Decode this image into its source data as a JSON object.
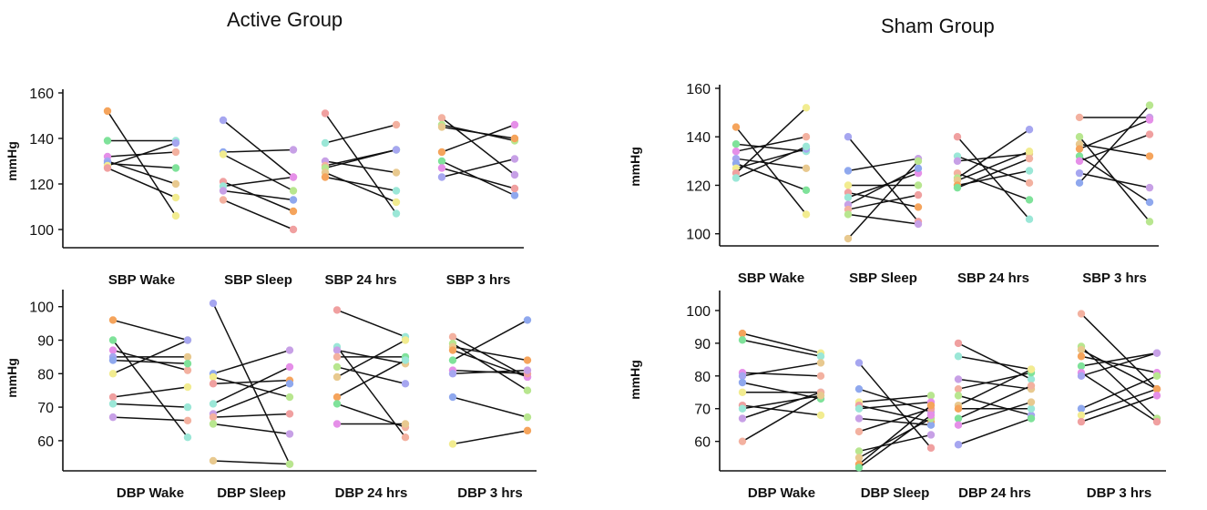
{
  "titles": {
    "active": "Active Group",
    "sham": "Sham Group"
  },
  "chart_data": [
    {
      "type": "scatter",
      "subtype": "paired-dot-plot",
      "group": "Active Group",
      "measure": "SBP",
      "ylabel": "mmHg",
      "ylim": [
        92,
        160
      ],
      "yticks": [
        100,
        120,
        140,
        160
      ],
      "categories": [
        "SBP Wake",
        "SBP Sleep",
        "SBP 24 hrs",
        "SBP 3 hrs"
      ],
      "pairs": [
        [
          [
            152,
            106
          ],
          [
            139,
            139
          ],
          [
            132,
            134
          ],
          [
            130,
            120
          ],
          [
            129,
            127
          ],
          [
            128,
            138
          ],
          [
            127,
            114
          ]
        ],
        [
          [
            148,
            123
          ],
          [
            134,
            135
          ],
          [
            133,
            117
          ],
          [
            121,
            108
          ],
          [
            119,
            123
          ],
          [
            117,
            113
          ],
          [
            113,
            100
          ]
        ],
        [
          [
            151,
            107
          ],
          [
            138,
            146
          ],
          [
            130,
            125
          ],
          [
            128,
            135
          ],
          [
            127,
            135
          ],
          [
            125,
            112
          ],
          [
            123,
            117
          ]
        ],
        [
          [
            149,
            124
          ],
          [
            146,
            139
          ],
          [
            145,
            140
          ],
          [
            134,
            146
          ],
          [
            130,
            115
          ],
          [
            127,
            118
          ],
          [
            123,
            131
          ]
        ]
      ]
    },
    {
      "type": "scatter",
      "subtype": "paired-dot-plot",
      "group": "Sham Group",
      "measure": "SBP",
      "ylabel": "mmHg",
      "ylim": [
        95,
        160
      ],
      "yticks": [
        100,
        120,
        140,
        160
      ],
      "categories": [
        "SBP Wake",
        "SBP Sleep",
        "SBP 24 hrs",
        "SBP 3 hrs"
      ],
      "pairs": [
        [
          [
            144,
            108
          ],
          [
            137,
            134
          ],
          [
            134,
            140
          ],
          [
            131,
            127
          ],
          [
            129,
            118
          ],
          [
            127,
            135
          ],
          [
            125,
            152
          ],
          [
            123,
            136
          ]
        ],
        [
          [
            140,
            105
          ],
          [
            126,
            131
          ],
          [
            120,
            120
          ],
          [
            117,
            111
          ],
          [
            115,
            125
          ],
          [
            112,
            127
          ],
          [
            110,
            116
          ],
          [
            108,
            104
          ],
          [
            98,
            130
          ]
        ],
        [
          [
            140,
            106
          ],
          [
            132,
            121
          ],
          [
            130,
            133
          ],
          [
            125,
            114
          ],
          [
            123,
            143
          ],
          [
            122,
            134
          ],
          [
            120,
            126
          ],
          [
            119,
            131
          ]
        ],
        [
          [
            148,
            148
          ],
          [
            140,
            105
          ],
          [
            137,
            132
          ],
          [
            135,
            147
          ],
          [
            132,
            113
          ],
          [
            130,
            141
          ],
          [
            125,
            119
          ],
          [
            121,
            153
          ]
        ]
      ]
    },
    {
      "type": "scatter",
      "subtype": "paired-dot-plot",
      "group": "Active Group",
      "measure": "DBP",
      "ylabel": "mmHg",
      "ylim": [
        51,
        104
      ],
      "yticks": [
        60,
        70,
        80,
        90,
        100
      ],
      "categories": [
        "DBP Wake",
        "DBP Sleep",
        "DBP 24 hrs",
        "DBP 3 hrs"
      ],
      "pairs": [
        [
          [
            96,
            90
          ],
          [
            90,
            61
          ],
          [
            87,
            81
          ],
          [
            85,
            85
          ],
          [
            84,
            83
          ],
          [
            80,
            90
          ],
          [
            73,
            76
          ],
          [
            71,
            70
          ],
          [
            67,
            66
          ]
        ],
        [
          [
            101,
            53
          ],
          [
            80,
            87
          ],
          [
            79,
            73
          ],
          [
            77,
            78
          ],
          [
            71,
            82
          ],
          [
            68,
            77
          ],
          [
            67,
            68
          ],
          [
            65,
            62
          ],
          [
            54,
            53
          ]
        ],
        [
          [
            99,
            91
          ],
          [
            88,
            61
          ],
          [
            87,
            83
          ],
          [
            85,
            85
          ],
          [
            82,
            77
          ],
          [
            79,
            90
          ],
          [
            73,
            84
          ],
          [
            71,
            64
          ],
          [
            65,
            65
          ]
        ],
        [
          [
            91,
            79
          ],
          [
            89,
            75
          ],
          [
            88,
            84
          ],
          [
            87,
            79
          ],
          [
            84,
            96
          ],
          [
            81,
            80
          ],
          [
            80,
            81
          ],
          [
            73,
            67
          ],
          [
            59,
            63
          ]
        ]
      ]
    },
    {
      "type": "scatter",
      "subtype": "paired-dot-plot",
      "group": "Sham Group",
      "measure": "DBP",
      "ylabel": "mmHg",
      "ylim": [
        51,
        105
      ],
      "yticks": [
        60,
        70,
        80,
        90,
        100
      ],
      "categories": [
        "DBP Wake",
        "DBP Sleep",
        "DBP 24 hrs",
        "DBP 3 hrs"
      ],
      "pairs": [
        [
          [
            93,
            87
          ],
          [
            91,
            86
          ],
          [
            81,
            80
          ],
          [
            80,
            84
          ],
          [
            78,
            73
          ],
          [
            75,
            75
          ],
          [
            71,
            68
          ],
          [
            70,
            74
          ],
          [
            67,
            75
          ],
          [
            60,
            74
          ]
        ],
        [
          [
            84,
            58
          ],
          [
            76,
            69
          ],
          [
            72,
            74
          ],
          [
            71,
            66
          ],
          [
            70,
            72
          ],
          [
            67,
            65
          ],
          [
            63,
            70
          ],
          [
            57,
            62
          ],
          [
            55,
            67
          ],
          [
            53,
            71
          ],
          [
            52,
            68
          ]
        ],
        [
          [
            90,
            79
          ],
          [
            86,
            82
          ],
          [
            79,
            76
          ],
          [
            76,
            81
          ],
          [
            74,
            68
          ],
          [
            71,
            82
          ],
          [
            70,
            70
          ],
          [
            67,
            77
          ],
          [
            65,
            72
          ],
          [
            59,
            67
          ]
        ],
        [
          [
            99,
            76
          ],
          [
            89,
            67
          ],
          [
            88,
            76
          ],
          [
            86,
            81
          ],
          [
            83,
            87
          ],
          [
            81,
            66
          ],
          [
            80,
            87
          ],
          [
            70,
            80
          ],
          [
            68,
            76
          ],
          [
            66,
            74
          ]
        ]
      ]
    }
  ]
}
